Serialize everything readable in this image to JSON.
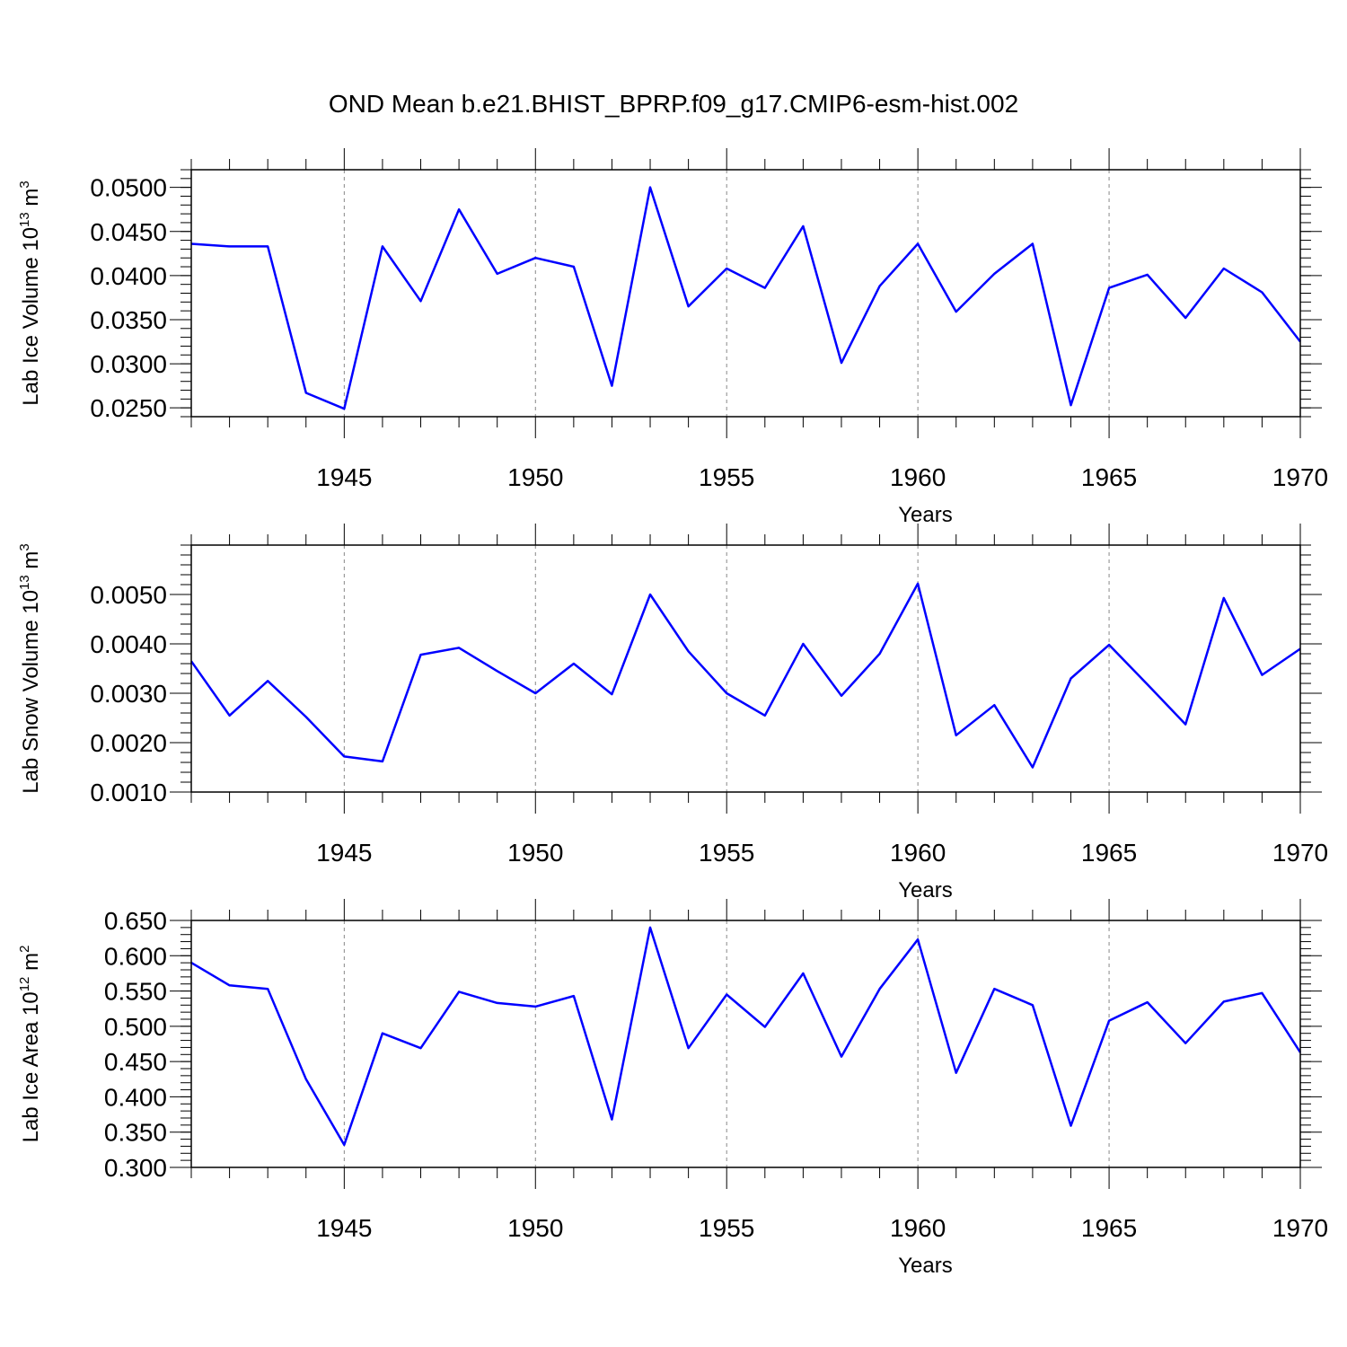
{
  "title": "OND Mean b.e21.BHIST_BPRP.f09_g17.CMIP6-esm-hist.002",
  "colors": {
    "line": "#0000ff",
    "axis": "#000000",
    "grid": "#888888"
  },
  "chart_data": [
    {
      "type": "line",
      "ylabel_main": "Lab Ice Volume 10",
      "ylabel_exp": "13",
      "ylabel_unit": "m",
      "ylabel_unit_exp": "3",
      "xlabel": "Years",
      "xlim": [
        1941,
        1970
      ],
      "ylim": [
        0.024,
        0.052
      ],
      "yticks": [
        0.025,
        0.03,
        0.035,
        0.04,
        0.045,
        0.05
      ],
      "yticklabels": [
        "0.0250",
        "0.0300",
        "0.0350",
        "0.0400",
        "0.0450",
        "0.0500"
      ],
      "yminor": 0.001,
      "xticks": [
        1945,
        1950,
        1955,
        1960,
        1965,
        1970
      ],
      "xticklabels": [
        "1945",
        "1950",
        "1955",
        "1960",
        "1965",
        "1970"
      ],
      "series": [
        {
          "name": "Lab Ice Volume",
          "x": [
            1941,
            1942,
            1943,
            1944,
            1945,
            1946,
            1947,
            1948,
            1949,
            1950,
            1951,
            1952,
            1953,
            1954,
            1955,
            1956,
            1957,
            1958,
            1959,
            1960,
            1961,
            1962,
            1963,
            1964,
            1965,
            1966,
            1967,
            1968,
            1969,
            1970
          ],
          "values": [
            0.0436,
            0.0433,
            0.0433,
            0.0267,
            0.0249,
            0.0433,
            0.0371,
            0.0475,
            0.0402,
            0.042,
            0.041,
            0.0275,
            0.05,
            0.0365,
            0.0408,
            0.0386,
            0.0456,
            0.0301,
            0.0388,
            0.0436,
            0.0359,
            0.0402,
            0.0436,
            0.0253,
            0.0386,
            0.0401,
            0.0352,
            0.0408,
            0.0381,
            0.0325
          ]
        }
      ]
    },
    {
      "type": "line",
      "ylabel_main": "Lab Snow Volume 10",
      "ylabel_exp": "13",
      "ylabel_unit": "m",
      "ylabel_unit_exp": "3",
      "xlabel": "Years",
      "xlim": [
        1941,
        1970
      ],
      "ylim": [
        0.001,
        0.006
      ],
      "yticks": [
        0.001,
        0.002,
        0.003,
        0.004,
        0.005
      ],
      "yticklabels": [
        "0.0010",
        "0.0020",
        "0.0030",
        "0.0040",
        "0.0050"
      ],
      "yminor": 0.0002,
      "xticks": [
        1945,
        1950,
        1955,
        1960,
        1965,
        1970
      ],
      "xticklabels": [
        "1945",
        "1950",
        "1955",
        "1960",
        "1965",
        "1970"
      ],
      "series": [
        {
          "name": "Lab Snow Volume",
          "x": [
            1941,
            1942,
            1943,
            1944,
            1945,
            1946,
            1947,
            1948,
            1949,
            1950,
            1951,
            1952,
            1953,
            1954,
            1955,
            1956,
            1957,
            1958,
            1959,
            1960,
            1961,
            1962,
            1963,
            1964,
            1965,
            1966,
            1967,
            1968,
            1969,
            1970
          ],
          "values": [
            0.00365,
            0.00255,
            0.00325,
            0.00252,
            0.00172,
            0.00162,
            0.00378,
            0.00392,
            0.00345,
            0.003,
            0.0036,
            0.00298,
            0.005,
            0.00385,
            0.003,
            0.00255,
            0.004,
            0.00295,
            0.0038,
            0.00522,
            0.00215,
            0.00276,
            0.0015,
            0.0033,
            0.00398,
            0.00318,
            0.00237,
            0.00493,
            0.00337,
            0.0039
          ]
        }
      ]
    },
    {
      "type": "line",
      "ylabel_main": "Lab Ice Area 10",
      "ylabel_exp": "12",
      "ylabel_unit": "m",
      "ylabel_unit_exp": "2",
      "xlabel": "Years",
      "xlim": [
        1941,
        1970
      ],
      "ylim": [
        0.3,
        0.65
      ],
      "yticks": [
        0.3,
        0.35,
        0.4,
        0.45,
        0.5,
        0.55,
        0.6,
        0.65
      ],
      "yticklabels": [
        "0.300",
        "0.350",
        "0.400",
        "0.450",
        "0.500",
        "0.550",
        "0.600",
        "0.650"
      ],
      "yminor": 0.01,
      "xticks": [
        1945,
        1950,
        1955,
        1960,
        1965,
        1970
      ],
      "xticklabels": [
        "1945",
        "1950",
        "1955",
        "1960",
        "1965",
        "1970"
      ],
      "series": [
        {
          "name": "Lab Ice Area",
          "x": [
            1941,
            1942,
            1943,
            1944,
            1945,
            1946,
            1947,
            1948,
            1949,
            1950,
            1951,
            1952,
            1953,
            1954,
            1955,
            1956,
            1957,
            1958,
            1959,
            1960,
            1961,
            1962,
            1963,
            1964,
            1965,
            1966,
            1967,
            1968,
            1969,
            1970
          ],
          "values": [
            0.59,
            0.558,
            0.553,
            0.425,
            0.332,
            0.49,
            0.469,
            0.549,
            0.533,
            0.528,
            0.543,
            0.368,
            0.64,
            0.469,
            0.545,
            0.499,
            0.575,
            0.457,
            0.553,
            0.623,
            0.434,
            0.553,
            0.53,
            0.359,
            0.508,
            0.534,
            0.476,
            0.535,
            0.547,
            0.463
          ]
        }
      ]
    }
  ]
}
